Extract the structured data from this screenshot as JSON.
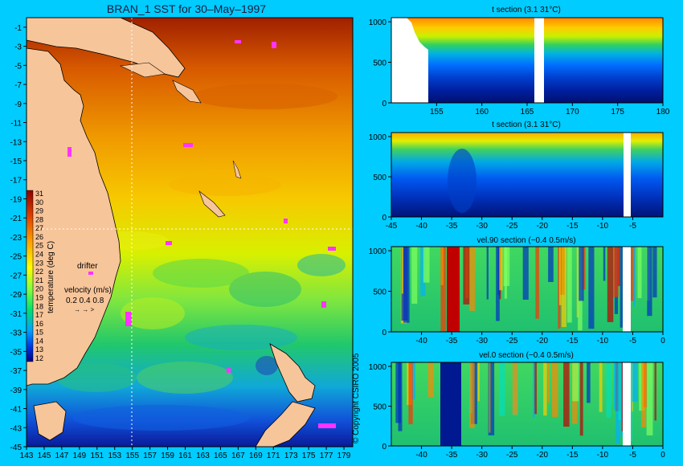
{
  "page": {
    "title": "BRAN_1 SST for 30–May–1997",
    "copyright": "© Copyright CSIRO 2005",
    "colors": {
      "background": "#00ccff",
      "land": "#f7c59a",
      "drifter": "#ff33ff"
    }
  },
  "chart_data": [
    {
      "type": "heatmap",
      "title": "BRAN_1 SST for 30–May–1997",
      "x_ticks": [
        "143",
        "145",
        "147",
        "149",
        "151",
        "153",
        "155",
        "157",
        "159",
        "161",
        "163",
        "165",
        "167",
        "169",
        "171",
        "173",
        "175",
        "177",
        "179"
      ],
      "y_ticks": [
        "-1",
        "-3",
        "-5",
        "-7",
        "-9",
        "-11",
        "-13",
        "-15",
        "-17",
        "-19",
        "-21",
        "-23",
        "-25",
        "-27",
        "-29",
        "-31",
        "-33",
        "-35",
        "-37",
        "-39",
        "-41",
        "-43",
        "-45"
      ],
      "xlim": [
        143,
        180
      ],
      "ylim": [
        -45,
        0
      ],
      "colorbar": {
        "label": "temperature (deg C)",
        "ticks": [
          "31",
          "30",
          "29",
          "28",
          "27",
          "26",
          "25",
          "24",
          "23",
          "22",
          "21",
          "20",
          "19",
          "18",
          "17",
          "16",
          "15",
          "14",
          "13",
          "12"
        ],
        "range": [
          12,
          31
        ]
      },
      "legend": {
        "drifter_label": "drifter",
        "velocity_label": "velocity (m/s)",
        "velocity_values": "0.2 0.4 0.8",
        "velocity_arrows": "→  →  >"
      },
      "section_lines": {
        "meridional_lon": 155,
        "zonal_lat": -22
      }
    },
    {
      "type": "heatmap",
      "title": "t section (3.1      31°C)",
      "x_ticks": [
        "155",
        "160",
        "165",
        "170",
        "175",
        "180"
      ],
      "y_ticks": [
        "0",
        "500",
        "1000"
      ],
      "xlim": [
        150,
        180
      ],
      "ylim": [
        1050,
        0
      ]
    },
    {
      "type": "heatmap",
      "title": "t section (3.1      31°C)",
      "x_ticks": [
        "-45",
        "-40",
        "-35",
        "-30",
        "-25",
        "-20",
        "-15",
        "-10",
        "-5"
      ],
      "y_ticks": [
        "0",
        "500",
        "1000"
      ],
      "xlim": [
        -45,
        0
      ],
      "ylim": [
        1050,
        0
      ]
    },
    {
      "type": "heatmap",
      "title": "vel.90 section (−0.4      0.5m/s)",
      "x_ticks": [
        "-40",
        "-35",
        "-30",
        "-25",
        "-20",
        "-15",
        "-10",
        "-5",
        "0"
      ],
      "y_ticks": [
        "0",
        "500",
        "1000"
      ],
      "xlim": [
        -45,
        0
      ],
      "ylim": [
        1050,
        0
      ]
    },
    {
      "type": "heatmap",
      "title": "vel.0 section (−0.4      0.5m/s)",
      "x_ticks": [
        "-40",
        "-35",
        "-30",
        "-25",
        "-20",
        "-15",
        "-10",
        "-5",
        "0"
      ],
      "y_ticks": [
        "0",
        "500",
        "1000"
      ],
      "xlim": [
        -45,
        0
      ],
      "ylim": [
        1050,
        0
      ]
    }
  ]
}
